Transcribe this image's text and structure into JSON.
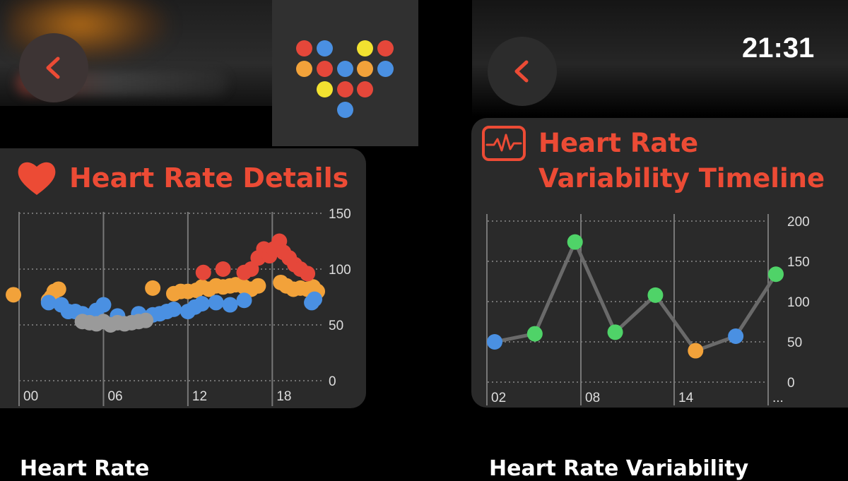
{
  "status": {
    "time": "21:31"
  },
  "left_panel": {
    "title": "Heart Rate Details",
    "caption": "Heart Rate"
  },
  "right_panel": {
    "title_line1": "Heart Rate",
    "title_line2": "Variability Timeline",
    "caption": "Heart Rate Variability"
  },
  "colors": {
    "accent_red": "#ec4b35",
    "series_red": "#e5473a",
    "series_orange": "#f2a23a",
    "series_blue": "#4a90e2",
    "series_gray": "#9a9a9a",
    "series_green": "#4fd368"
  },
  "icons": {
    "back": "chevron-left-icon",
    "heart": "heart-icon",
    "waveform": "waveform-icon",
    "app": "dot-heart-app-icon"
  },
  "chart_data": [
    {
      "type": "scatter",
      "title": "Heart Rate Details",
      "x_tick_labels": [
        "00",
        "06",
        "12",
        "18"
      ],
      "y_tick_labels": [
        "150",
        "100",
        "50",
        "0"
      ],
      "xlim": [
        0,
        21.5
      ],
      "ylim": [
        0,
        150
      ],
      "grid": true,
      "series": [
        {
          "color": "orange",
          "points": [
            [
              -0.4,
              77
            ],
            [
              2.1,
              72
            ],
            [
              2.5,
              80
            ],
            [
              2.8,
              82
            ],
            [
              2.3,
              75
            ],
            [
              9.5,
              83
            ],
            [
              11,
              78
            ],
            [
              11.5,
              80
            ],
            [
              12,
              80
            ],
            [
              12.6,
              81
            ],
            [
              13,
              84
            ],
            [
              13.5,
              82
            ],
            [
              14,
              85
            ],
            [
              14.5,
              84
            ],
            [
              15,
              85
            ],
            [
              15.4,
              86
            ],
            [
              16,
              84
            ],
            [
              16.5,
              82
            ],
            [
              17,
              85
            ],
            [
              18.6,
              88
            ],
            [
              19,
              85
            ],
            [
              19.5,
              82
            ],
            [
              20,
              83
            ],
            [
              20.5,
              82
            ],
            [
              20.9,
              84
            ],
            [
              21.2,
              80
            ]
          ]
        },
        {
          "color": "red",
          "points": [
            [
              13.1,
              97
            ],
            [
              14.5,
              100
            ],
            [
              16,
              97
            ],
            [
              16.5,
              100
            ],
            [
              17,
              110
            ],
            [
              17.4,
              118
            ],
            [
              17.8,
              112
            ],
            [
              18.1,
              118
            ],
            [
              18.5,
              125
            ],
            [
              18.8,
              115
            ],
            [
              19.2,
              110
            ],
            [
              19.6,
              104
            ],
            [
              20,
              100
            ],
            [
              20.5,
              96
            ]
          ]
        },
        {
          "color": "blue",
          "points": [
            [
              2.1,
              70
            ],
            [
              3.0,
              68
            ],
            [
              3.5,
              62
            ],
            [
              4.0,
              62
            ],
            [
              4.5,
              60
            ],
            [
              5.0,
              58
            ],
            [
              5.5,
              63
            ],
            [
              6.0,
              68
            ],
            [
              7.0,
              58
            ],
            [
              8.5,
              60
            ],
            [
              9.0,
              56
            ],
            [
              9.5,
              59
            ],
            [
              10.0,
              60
            ],
            [
              10.5,
              62
            ],
            [
              11,
              64
            ],
            [
              12,
              62
            ],
            [
              12.5,
              66
            ],
            [
              13,
              69
            ],
            [
              14,
              70
            ],
            [
              15,
              68
            ],
            [
              16,
              72
            ],
            [
              20.8,
              70
            ],
            [
              21,
              73
            ]
          ]
        },
        {
          "color": "gray",
          "points": [
            [
              4.5,
              53
            ],
            [
              5.0,
              52
            ],
            [
              5.5,
              51
            ],
            [
              6.0,
              53
            ],
            [
              6.5,
              50
            ],
            [
              7.0,
              52
            ],
            [
              7.5,
              51
            ],
            [
              8.0,
              52
            ],
            [
              8.5,
              53
            ],
            [
              9.0,
              54
            ]
          ]
        }
      ]
    },
    {
      "type": "line",
      "title": "Heart Rate Variability Timeline",
      "x_tick_labels": [
        "02",
        "08",
        "14",
        "..."
      ],
      "y_tick_labels": [
        "200",
        "150",
        "100",
        "50",
        "0"
      ],
      "ylim": [
        0,
        200
      ],
      "grid": true,
      "points": [
        {
          "x": 0,
          "y": 50,
          "color": "blue"
        },
        {
          "x": 1,
          "y": 60,
          "color": "green"
        },
        {
          "x": 2,
          "y": 174,
          "color": "green"
        },
        {
          "x": 3,
          "y": 62,
          "color": "green"
        },
        {
          "x": 4,
          "y": 108,
          "color": "green"
        },
        {
          "x": 5,
          "y": 39,
          "color": "orange"
        },
        {
          "x": 6,
          "y": 57,
          "color": "blue"
        },
        {
          "x": 7,
          "y": 134,
          "color": "green"
        }
      ]
    }
  ]
}
